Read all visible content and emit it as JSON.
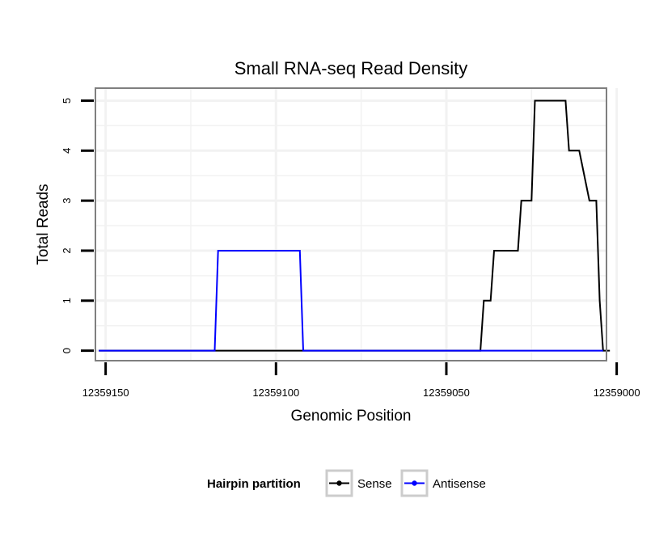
{
  "chart_data": {
    "type": "line",
    "title": "Small RNA-seq Read Density",
    "xlabel": "Genomic Position",
    "ylabel": "Total Reads",
    "xlim": [
      12359153,
      12359003
    ],
    "ylim": [
      -0.2,
      5.25
    ],
    "x_reversed": true,
    "x_ticks": [
      12359150,
      12359100,
      12359050,
      12359000
    ],
    "x_tick_labels": [
      "12359150",
      "12359100",
      "12359050",
      "12359000"
    ],
    "y_ticks": [
      0,
      1,
      2,
      3,
      4,
      5
    ],
    "y_tick_labels": [
      "0",
      "1",
      "2",
      "3",
      "4",
      "5"
    ],
    "grid": true,
    "legend": {
      "title": "Hairpin partition",
      "position": "bottom"
    },
    "series": [
      {
        "name": "Sense",
        "color": "#000000",
        "x": [
          12359152,
          12359040,
          12359039,
          12359038,
          12359037,
          12359036,
          12359035,
          12359029,
          12359028,
          12359027,
          12359025,
          12359024,
          12359023,
          12359015,
          12359014,
          12359012,
          12359011,
          12359008,
          12359007,
          12359006,
          12359005,
          12359004,
          12359002
        ],
        "y": [
          0,
          0,
          1,
          1,
          1,
          2,
          2,
          2,
          3,
          3,
          3,
          5,
          5,
          5,
          4,
          4,
          4,
          3,
          3,
          3,
          1,
          0,
          0
        ]
      },
      {
        "name": "Antisense",
        "color": "#0000ff",
        "x": [
          12359152,
          12359118,
          12359117,
          12359093,
          12359092,
          12359040,
          12359004
        ],
        "y": [
          0,
          0,
          2,
          2,
          0,
          0,
          0
        ]
      }
    ]
  }
}
